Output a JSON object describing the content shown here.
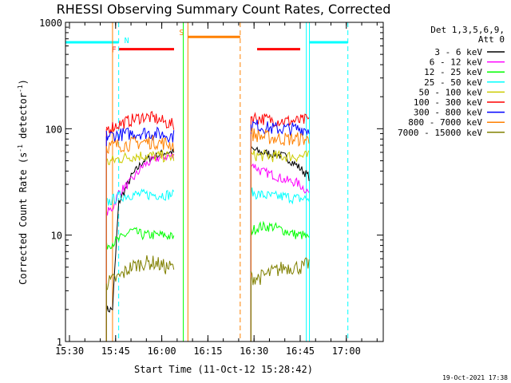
{
  "chart_data": {
    "type": "line",
    "title": "RHESSI Observing Summary Count Rates, Corrected",
    "xlabel": "Start Time (11-Oct-12 15:28:42)",
    "ylabel": "Corrected Count Rate (s-1 detector-1)",
    "ylabel_parts": {
      "a": "Corrected Count Rate (s",
      "sup1": "-1",
      "b": " detector",
      "sup2": "-1",
      "c": ")"
    },
    "yscale": "log",
    "ylim": [
      1,
      1000
    ],
    "xlim": [
      "15:28:42",
      "17:12:00"
    ],
    "x_ticks": [
      "15:30",
      "15:45",
      "16:00",
      "16:15",
      "16:30",
      "16:45",
      "17:00"
    ],
    "y_ticks": [
      "1",
      "10",
      "100",
      "1000"
    ],
    "legend_header": [
      "Det 1,3,5,6,9,",
      "Att 0"
    ],
    "legend_position": "right",
    "timestamp": "19-Oct-2021 17:38",
    "series": [
      {
        "name": "3 - 6 keV",
        "color": "#000000",
        "segments": [
          {
            "x": [
              "15:42",
              "15:44",
              "15:46",
              "15:50",
              "15:54",
              "15:58",
              "16:01",
              "16:04"
            ],
            "y": [
              2,
              2,
              20,
              35,
              50,
              55,
              60,
              60
            ]
          },
          {
            "x": [
              "16:29",
              "16:32",
              "16:36",
              "16:40",
              "16:44",
              "16:46",
              "16:48"
            ],
            "y": [
              65,
              60,
              58,
              55,
              45,
              40,
              35
            ]
          }
        ]
      },
      {
        "name": "6 - 12 keV",
        "color": "#ff00ff",
        "segments": [
          {
            "x": [
              "15:42",
              "15:44",
              "15:46",
              "15:50",
              "15:54",
              "15:58",
              "16:01",
              "16:04"
            ],
            "y": [
              16,
              18,
              25,
              32,
              45,
              52,
              55,
              55
            ]
          },
          {
            "x": [
              "16:29",
              "16:32",
              "16:36",
              "16:40",
              "16:44",
              "16:46",
              "16:48"
            ],
            "y": [
              48,
              40,
              37,
              33,
              31,
              28,
              25
            ]
          }
        ]
      },
      {
        "name": "12 - 25 keV",
        "color": "#00ff00",
        "segments": [
          {
            "x": [
              "15:42",
              "15:46",
              "15:50",
              "15:54",
              "15:58",
              "16:01",
              "16:04"
            ],
            "y": [
              8,
              9,
              11,
              10,
              10,
              10,
              9.5
            ]
          },
          {
            "x": [
              "16:29",
              "16:32",
              "16:36",
              "16:40",
              "16:44",
              "16:46",
              "16:48"
            ],
            "y": [
              11,
              12,
              12,
              11,
              10,
              10,
              9
            ]
          }
        ]
      },
      {
        "name": "25 - 50 keV",
        "color": "#00ffff",
        "segments": [
          {
            "x": [
              "15:42",
              "15:46",
              "15:50",
              "15:54",
              "15:58",
              "16:01",
              "16:04"
            ],
            "y": [
              20,
              23,
              24,
              24,
              24,
              24,
              24
            ]
          },
          {
            "x": [
              "16:29",
              "16:32",
              "16:36",
              "16:40",
              "16:44",
              "16:46",
              "16:48"
            ],
            "y": [
              25,
              24,
              23,
              23,
              22,
              22,
              22
            ]
          }
        ]
      },
      {
        "name": "50 - 100 keV",
        "color": "#cccc00",
        "segments": [
          {
            "x": [
              "15:42",
              "15:46",
              "15:50",
              "15:54",
              "15:58",
              "16:01",
              "16:04"
            ],
            "y": [
              48,
              52,
              55,
              56,
              55,
              55,
              54
            ]
          },
          {
            "x": [
              "16:29",
              "16:32",
              "16:36",
              "16:40",
              "16:44",
              "16:46",
              "16:48"
            ],
            "y": [
              56,
              56,
              55,
              55,
              55,
              55,
              55
            ]
          }
        ]
      },
      {
        "name": "100 - 300 keV",
        "color": "#ff0000",
        "segments": [
          {
            "x": [
              "15:42",
              "15:46",
              "15:50",
              "15:54",
              "15:58",
              "16:01",
              "16:04"
            ],
            "y": [
              100,
              110,
              120,
              130,
              125,
              115,
              108
            ]
          },
          {
            "x": [
              "16:29",
              "16:32",
              "16:36",
              "16:40",
              "16:44",
              "16:46",
              "16:48"
            ],
            "y": [
              130,
              125,
              120,
              118,
              118,
              120,
              122
            ]
          }
        ]
      },
      {
        "name": "300 - 800 keV",
        "color": "#0000ff",
        "segments": [
          {
            "x": [
              "15:42",
              "15:46",
              "15:50",
              "15:54",
              "15:58",
              "16:01",
              "16:04"
            ],
            "y": [
              85,
              88,
              90,
              92,
              90,
              88,
              85
            ]
          },
          {
            "x": [
              "16:29",
              "16:32",
              "16:36",
              "16:40",
              "16:44",
              "16:46",
              "16:48"
            ],
            "y": [
              110,
              105,
              100,
              100,
              100,
              100,
              98
            ]
          }
        ]
      },
      {
        "name": "800 - 7000 keV",
        "color": "#ff8000",
        "segments": [
          {
            "x": [
              "15:42",
              "15:46",
              "15:50",
              "15:54",
              "15:58",
              "16:01",
              "16:04"
            ],
            "y": [
              68,
              70,
              72,
              75,
              75,
              73,
              70
            ]
          },
          {
            "x": [
              "16:29",
              "16:32",
              "16:36",
              "16:40",
              "16:44",
              "16:46",
              "16:48"
            ],
            "y": [
              90,
              85,
              82,
              80,
              80,
              80,
              78
            ]
          }
        ]
      },
      {
        "name": "7000 - 15000 keV",
        "color": "#808000",
        "segments": [
          {
            "x": [
              "15:42",
              "15:46",
              "15:50",
              "15:54",
              "15:58",
              "16:01",
              "16:04"
            ],
            "y": [
              3.5,
              4,
              5,
              5.5,
              5.5,
              5,
              5
            ]
          },
          {
            "x": [
              "16:29",
              "16:32",
              "16:36",
              "16:40",
              "16:44",
              "16:46",
              "16:48"
            ],
            "y": [
              4,
              4,
              4.5,
              5,
              5,
              5,
              5.5
            ]
          }
        ]
      }
    ],
    "annotations": {
      "cyan_bar": {
        "label": "N",
        "color": "#00ffff",
        "spans": [
          [
            "15:28:42",
            "15:46"
          ],
          [
            "16:48",
            "17:00:30"
          ]
        ],
        "level": 650
      },
      "red_bar": {
        "label": "F",
        "color": "#ff0000",
        "spans": [
          [
            "15:46",
            "16:04"
          ],
          [
            "16:31",
            "16:45"
          ]
        ],
        "level": 560
      },
      "orange_bar": {
        "label": "S",
        "color": "#ff8000",
        "spans": [
          [
            "16:08:30",
            "16:25:30"
          ]
        ],
        "level": 730
      },
      "vlines": [
        {
          "x": "15:46",
          "color": "#00ffff",
          "style": "dashed"
        },
        {
          "x": "15:44",
          "color": "#ff8000",
          "style": "solid"
        },
        {
          "x": "16:08:30",
          "color": "#ff8000",
          "style": "solid"
        },
        {
          "x": "16:07",
          "color": "#00ff00",
          "style": "solid"
        },
        {
          "x": "16:25:30",
          "color": "#ff8000",
          "style": "dashed"
        },
        {
          "x": "16:47",
          "color": "#00ffff",
          "style": "solid"
        },
        {
          "x": "16:48",
          "color": "#00ffff",
          "style": "solid"
        },
        {
          "x": "17:00:30",
          "color": "#00ffff",
          "style": "dashed"
        }
      ]
    }
  }
}
